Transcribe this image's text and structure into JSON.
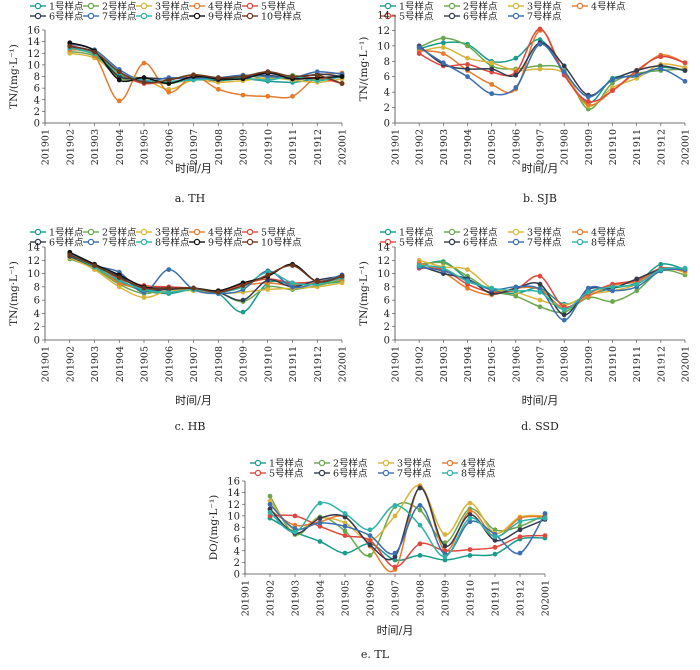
{
  "chart_data": [
    {
      "type": "line",
      "caption": "a.  TH",
      "ylabel": "TN/(mg·L⁻¹)",
      "xlabel": "时间/月",
      "ylim": [
        0,
        16
      ],
      "yticks": [
        0,
        2,
        4,
        6,
        8,
        10,
        12,
        14,
        16
      ],
      "categories": [
        "201901",
        "201902",
        "201903",
        "201904",
        "201905",
        "201906",
        "201907",
        "201908",
        "201909",
        "201910",
        "201911",
        "201912",
        "202001"
      ],
      "legend_rows": [
        [
          "1号样点",
          "2号样点",
          "3号样点",
          "4号样点",
          "5号样点"
        ],
        [
          "6号样点",
          "7号样点",
          "8号样点",
          "9号样点",
          "10号样点"
        ]
      ],
      "series": [
        {
          "name": "1号样点",
          "color": "#1a9c8c",
          "values": [
            null,
            12.8,
            11.8,
            8.2,
            7.4,
            7.0,
            7.8,
            7.3,
            7.6,
            7.2,
            7.0,
            7.6,
            7.9
          ]
        },
        {
          "name": "2号样点",
          "color": "#6aa84f",
          "values": [
            null,
            12.3,
            11.5,
            7.8,
            7.2,
            6.8,
            7.6,
            7.5,
            8.2,
            7.6,
            8.2,
            7.4,
            8.2
          ]
        },
        {
          "name": "3号样点",
          "color": "#d9b43a",
          "values": [
            null,
            12.0,
            11.2,
            8.4,
            7.6,
            5.8,
            7.4,
            7.0,
            7.3,
            7.8,
            7.4,
            7.0,
            7.6
          ]
        },
        {
          "name": "4号样点",
          "color": "#e87a2c",
          "values": [
            null,
            12.6,
            11.6,
            3.8,
            10.3,
            5.3,
            8.0,
            5.8,
            4.8,
            4.6,
            4.6,
            8.0,
            8.6
          ]
        },
        {
          "name": "5号样点",
          "color": "#e0483e",
          "values": [
            null,
            13.4,
            12.0,
            8.6,
            6.8,
            7.4,
            8.2,
            7.6,
            7.8,
            8.8,
            7.8,
            7.8,
            6.8
          ]
        },
        {
          "name": "6号样点",
          "color": "#333b4f",
          "values": [
            null,
            13.0,
            12.2,
            8.0,
            7.8,
            7.6,
            7.8,
            7.4,
            8.0,
            8.2,
            7.6,
            8.4,
            8.0
          ]
        },
        {
          "name": "7号样点",
          "color": "#3b6fb0",
          "values": [
            null,
            13.6,
            12.6,
            9.2,
            7.2,
            7.8,
            7.6,
            7.8,
            8.2,
            8.0,
            7.8,
            8.8,
            8.4
          ]
        },
        {
          "name": "8号样点",
          "color": "#2fb3a8",
          "values": [
            null,
            12.9,
            11.9,
            8.6,
            7.4,
            7.2,
            7.4,
            7.6,
            7.7,
            7.4,
            8.0,
            7.3,
            8.0
          ]
        },
        {
          "name": "9号样点",
          "color": "#111111",
          "values": [
            null,
            13.8,
            12.4,
            7.4,
            7.8,
            6.8,
            8.0,
            7.6,
            7.6,
            8.6,
            7.6,
            7.8,
            8.0
          ]
        },
        {
          "name": "10号样点",
          "color": "#6b3a1e",
          "values": [
            null,
            13.2,
            12.2,
            8.8,
            7.0,
            7.4,
            8.3,
            7.8,
            8.0,
            8.8,
            8.0,
            8.2,
            6.8
          ]
        }
      ]
    },
    {
      "type": "line",
      "caption": "b.  SJB",
      "ylabel": "TN/(mg·L⁻¹)",
      "xlabel": "时间/月",
      "ylim": [
        0,
        14
      ],
      "yticks": [
        0,
        2,
        4,
        6,
        8,
        10,
        12,
        14
      ],
      "categories": [
        "201901",
        "201902",
        "201903",
        "201904",
        "201905",
        "201906",
        "201907",
        "201908",
        "201909",
        "201910",
        "201911",
        "201912",
        "202001"
      ],
      "legend_rows": [
        [
          "1号样点",
          "2号样点",
          "3号样点",
          "4号样点"
        ],
        [
          "5号样点",
          "6号样点",
          "7号样点"
        ]
      ],
      "series": [
        {
          "name": "1号样点",
          "color": "#1a9c8c",
          "values": [
            null,
            9.6,
            10.4,
            10.2,
            8.0,
            8.4,
            10.8,
            6.6,
            2.6,
            5.8,
            6.0,
            7.2,
            6.8
          ]
        },
        {
          "name": "2号样点",
          "color": "#6aa84f",
          "values": [
            null,
            9.8,
            11.0,
            10.0,
            7.4,
            7.0,
            7.4,
            6.8,
            1.8,
            5.2,
            6.4,
            6.8,
            7.0
          ]
        },
        {
          "name": "3号样点",
          "color": "#d9b43a",
          "values": [
            null,
            9.2,
            9.8,
            8.4,
            7.8,
            6.8,
            7.0,
            6.4,
            2.2,
            4.6,
            5.8,
            7.6,
            7.2
          ]
        },
        {
          "name": "4号样点",
          "color": "#e87a2c",
          "values": [
            null,
            9.4,
            9.0,
            6.8,
            5.0,
            4.4,
            12.0,
            6.4,
            2.4,
            4.2,
            6.6,
            8.8,
            7.8
          ]
        },
        {
          "name": "5号样点",
          "color": "#e0483e",
          "values": [
            null,
            9.0,
            7.4,
            7.6,
            6.6,
            6.6,
            12.2,
            6.2,
            2.8,
            4.2,
            6.8,
            8.6,
            7.8
          ]
        },
        {
          "name": "6号样点",
          "color": "#333b4f",
          "values": [
            null,
            10.0,
            7.6,
            7.0,
            7.0,
            6.2,
            10.4,
            7.4,
            3.6,
            5.6,
            6.8,
            7.4,
            6.8
          ]
        },
        {
          "name": "7号样点",
          "color": "#3b6fb0",
          "values": [
            null,
            9.8,
            7.8,
            6.0,
            3.8,
            4.6,
            10.2,
            6.6,
            3.4,
            5.6,
            6.2,
            7.0,
            5.4
          ]
        }
      ]
    },
    {
      "type": "line",
      "caption": "c.  HB",
      "ylabel": "TN/(mg·L⁻¹)",
      "xlabel": "时间/月",
      "ylim": [
        0,
        14
      ],
      "yticks": [
        0,
        2,
        4,
        6,
        8,
        10,
        12,
        14
      ],
      "categories": [
        "201901",
        "201902",
        "201903",
        "201904",
        "201905",
        "201906",
        "201907",
        "201908",
        "201909",
        "201910",
        "201911",
        "201912",
        "202001"
      ],
      "legend_rows": [
        [
          "1号样点",
          "2号样点",
          "3号样点",
          "4号样点",
          "5号样点"
        ],
        [
          "6号样点",
          "7号样点",
          "8号样点",
          "9号样点",
          "10号样点"
        ]
      ],
      "series": [
        {
          "name": "1号样点",
          "color": "#1a9c8c",
          "values": [
            null,
            12.6,
            11.0,
            8.8,
            7.4,
            7.0,
            7.6,
            7.0,
            4.2,
            8.6,
            8.4,
            8.4,
            8.8
          ]
        },
        {
          "name": "2号样点",
          "color": "#6aa84f",
          "values": [
            null,
            12.2,
            10.8,
            8.4,
            7.0,
            7.8,
            7.8,
            7.2,
            5.8,
            8.0,
            7.6,
            8.2,
            9.0
          ]
        },
        {
          "name": "3号样点",
          "color": "#d9b43a",
          "values": [
            null,
            12.4,
            10.6,
            8.0,
            6.4,
            7.4,
            7.4,
            7.0,
            7.2,
            7.6,
            7.8,
            8.0,
            8.6
          ]
        },
        {
          "name": "4号样点",
          "color": "#e87a2c",
          "values": [
            null,
            12.8,
            11.2,
            8.6,
            7.8,
            7.8,
            7.6,
            7.2,
            8.2,
            8.6,
            8.2,
            8.6,
            9.2
          ]
        },
        {
          "name": "5号样点",
          "color": "#e0483e",
          "values": [
            null,
            13.0,
            11.4,
            9.2,
            8.2,
            8.0,
            7.8,
            7.4,
            8.4,
            9.2,
            8.6,
            8.8,
            9.4
          ]
        },
        {
          "name": "6号样点",
          "color": "#333b4f",
          "values": [
            null,
            12.6,
            11.0,
            9.6,
            7.6,
            7.6,
            7.8,
            7.2,
            6.0,
            9.0,
            8.0,
            9.0,
            9.6
          ]
        },
        {
          "name": "7号样点",
          "color": "#3b6fb0",
          "values": [
            null,
            13.0,
            11.2,
            10.2,
            7.2,
            10.6,
            7.6,
            7.0,
            7.6,
            10.4,
            8.0,
            8.6,
            9.8
          ]
        },
        {
          "name": "8号样点",
          "color": "#2fb3a8",
          "values": [
            null,
            12.8,
            11.0,
            9.0,
            7.6,
            7.2,
            7.6,
            7.2,
            8.0,
            10.2,
            8.6,
            8.4,
            9.4
          ]
        },
        {
          "name": "9号样点",
          "color": "#111111",
          "values": [
            null,
            13.2,
            11.4,
            9.8,
            8.0,
            7.8,
            7.8,
            7.4,
            8.6,
            9.6,
            11.4,
            8.8,
            9.6
          ]
        },
        {
          "name": "10号样点",
          "color": "#6b3a1e",
          "values": [
            null,
            12.8,
            11.2,
            9.4,
            7.8,
            7.8,
            7.8,
            7.2,
            8.2,
            9.8,
            11.2,
            8.8,
            9.6
          ]
        }
      ]
    },
    {
      "type": "line",
      "caption": "d.  SSD",
      "ylabel": "TN/(mg·L⁻¹)",
      "xlabel": "时间/月",
      "ylim": [
        0,
        14
      ],
      "yticks": [
        0,
        2,
        4,
        6,
        8,
        10,
        12,
        14
      ],
      "categories": [
        "201901",
        "201902",
        "201903",
        "201904",
        "201905",
        "201906",
        "201907",
        "201908",
        "201909",
        "201910",
        "201911",
        "201912",
        "202001"
      ],
      "legend_rows": [
        [
          "1号样点",
          "2号样点",
          "3号样点",
          "4号样点"
        ],
        [
          "5号样点",
          "6号样点",
          "7号样点",
          "8号样点"
        ]
      ],
      "series": [
        {
          "name": "1号样点",
          "color": "#1a9c8c",
          "values": [
            null,
            11.0,
            11.8,
            9.2,
            7.6,
            7.0,
            7.8,
            5.4,
            6.8,
            7.8,
            8.6,
            11.4,
            10.6
          ]
        },
        {
          "name": "2号样点",
          "color": "#6aa84f",
          "values": [
            null,
            11.4,
            11.6,
            9.6,
            7.4,
            6.6,
            5.0,
            4.2,
            6.4,
            5.8,
            7.4,
            10.4,
            9.8
          ]
        },
        {
          "name": "3号样点",
          "color": "#d9b43a",
          "values": [
            null,
            12.0,
            11.0,
            10.6,
            7.8,
            7.2,
            6.0,
            5.2,
            6.8,
            7.4,
            8.4,
            10.8,
            10.2
          ]
        },
        {
          "name": "4号样点",
          "color": "#e87a2c",
          "values": [
            null,
            11.6,
            10.2,
            7.8,
            6.8,
            7.8,
            7.6,
            4.8,
            6.6,
            8.2,
            8.8,
            10.6,
            10.4
          ]
        },
        {
          "name": "5号样点",
          "color": "#e0483e",
          "values": [
            null,
            10.8,
            10.6,
            8.4,
            7.2,
            7.6,
            9.6,
            5.0,
            7.0,
            8.4,
            9.0,
            10.8,
            10.6
          ]
        },
        {
          "name": "6号样点",
          "color": "#333b4f",
          "values": [
            null,
            11.2,
            10.0,
            9.2,
            7.0,
            7.8,
            8.4,
            3.8,
            7.6,
            7.8,
            9.2,
            10.6,
            10.8
          ]
        },
        {
          "name": "7号样点",
          "color": "#3b6fb0",
          "values": [
            null,
            11.0,
            10.4,
            9.0,
            7.6,
            8.0,
            7.6,
            3.0,
            7.8,
            7.4,
            8.0,
            10.4,
            10.6
          ]
        },
        {
          "name": "8号样点",
          "color": "#2fb3a8",
          "values": [
            null,
            11.2,
            10.8,
            8.8,
            7.8,
            7.4,
            7.2,
            4.6,
            7.2,
            8.0,
            8.4,
            10.6,
            10.8
          ]
        }
      ]
    },
    {
      "type": "line",
      "caption": "e.  TL",
      "ylabel": "DO/(mg·L⁻¹)",
      "xlabel": "时间/月",
      "ylim": [
        0,
        16
      ],
      "yticks": [
        0,
        2,
        4,
        6,
        8,
        10,
        12,
        14,
        16
      ],
      "categories": [
        "201901",
        "201902",
        "201903",
        "201904",
        "201905",
        "201906",
        "201907",
        "201908",
        "201909",
        "201910",
        "201911",
        "201912",
        "202001"
      ],
      "legend_rows": [
        [
          "1号样点",
          "2号样点",
          "3号样点",
          "4号样点"
        ],
        [
          "5号样点",
          "6号样点",
          "7号样点",
          "8号样点"
        ]
      ],
      "series": [
        {
          "name": "1号样点",
          "color": "#1a9c8c",
          "values": [
            null,
            9.6,
            7.2,
            5.6,
            3.6,
            5.2,
            2.4,
            3.2,
            2.4,
            3.2,
            3.4,
            6.0,
            6.2
          ]
        },
        {
          "name": "2号样点",
          "color": "#6aa84f",
          "values": [
            null,
            13.4,
            6.8,
            9.8,
            7.4,
            3.2,
            11.6,
            11.0,
            5.4,
            11.2,
            7.6,
            8.2,
            10.2
          ]
        },
        {
          "name": "3号样点",
          "color": "#d9b43a",
          "values": [
            null,
            12.6,
            7.6,
            9.6,
            8.8,
            5.8,
            10.0,
            15.2,
            6.8,
            12.2,
            7.0,
            9.8,
            10.0
          ]
        },
        {
          "name": "4号样点",
          "color": "#e87a2c",
          "values": [
            null,
            11.0,
            8.4,
            9.0,
            9.8,
            4.8,
            0.8,
            15.0,
            4.0,
            10.8,
            6.4,
            9.6,
            9.8
          ]
        },
        {
          "name": "5号样点",
          "color": "#e0483e",
          "values": [
            null,
            10.0,
            10.0,
            8.2,
            6.6,
            5.8,
            1.2,
            5.2,
            4.0,
            4.2,
            4.6,
            6.4,
            6.6
          ]
        },
        {
          "name": "6号样点",
          "color": "#333b4f",
          "values": [
            null,
            11.2,
            7.0,
            9.6,
            9.8,
            5.0,
            3.0,
            14.8,
            4.8,
            10.2,
            5.8,
            7.6,
            9.4
          ]
        },
        {
          "name": "7号样点",
          "color": "#3b6fb0",
          "values": [
            null,
            12.0,
            7.8,
            8.8,
            8.2,
            6.6,
            3.6,
            11.8,
            3.4,
            9.0,
            6.8,
            3.6,
            10.4
          ]
        },
        {
          "name": "8号样点",
          "color": "#2fb3a8",
          "values": [
            null,
            10.6,
            7.2,
            12.2,
            10.4,
            7.6,
            11.8,
            8.4,
            3.0,
            9.6,
            6.4,
            9.0,
            9.6
          ]
        }
      ]
    }
  ]
}
